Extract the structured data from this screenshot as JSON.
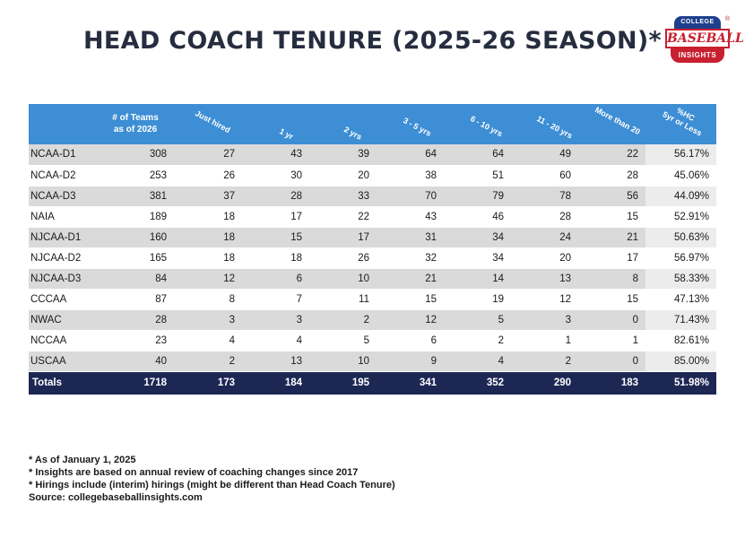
{
  "title": "HEAD COACH TENURE (2025-26 SEASON)*",
  "logo": {
    "top": "COLLEGE",
    "middle": "BASEBALL",
    "bottom": "INSIGHTS",
    "reg": "®"
  },
  "colors": {
    "header": "#3d8ed4",
    "totals": "#1d2754",
    "stripe": "#dadada",
    "title": "#262d3f"
  },
  "chart_data": {
    "type": "table",
    "title": "HEAD COACH TENURE (2025-26 SEASON)*",
    "columns": [
      "# of Teams as of 2026",
      "Just hired",
      "1 yr",
      "2 yrs",
      "3 - 5 yrs",
      "6 - 10 yrs",
      "11 - 20 yrs",
      "More than 20",
      "%HC 5yr or Less"
    ],
    "rows": [
      {
        "label": "NCAA-D1",
        "values": [
          "308",
          "27",
          "43",
          "39",
          "64",
          "64",
          "49",
          "22",
          "56.17%"
        ]
      },
      {
        "label": "NCAA-D2",
        "values": [
          "253",
          "26",
          "30",
          "20",
          "38",
          "51",
          "60",
          "28",
          "45.06%"
        ]
      },
      {
        "label": "NCAA-D3",
        "values": [
          "381",
          "37",
          "28",
          "33",
          "70",
          "79",
          "78",
          "56",
          "44.09%"
        ]
      },
      {
        "label": "NAIA",
        "values": [
          "189",
          "18",
          "17",
          "22",
          "43",
          "46",
          "28",
          "15",
          "52.91%"
        ]
      },
      {
        "label": "NJCAA-D1",
        "values": [
          "160",
          "18",
          "15",
          "17",
          "31",
          "34",
          "24",
          "21",
          "50.63%"
        ]
      },
      {
        "label": "NJCAA-D2",
        "values": [
          "165",
          "18",
          "18",
          "26",
          "32",
          "34",
          "20",
          "17",
          "56.97%"
        ]
      },
      {
        "label": "NJCAA-D3",
        "values": [
          "84",
          "12",
          "6",
          "10",
          "21",
          "14",
          "13",
          "8",
          "58.33%"
        ]
      },
      {
        "label": "CCCAA",
        "values": [
          "87",
          "8",
          "7",
          "11",
          "15",
          "19",
          "12",
          "15",
          "47.13%"
        ]
      },
      {
        "label": "NWAC",
        "values": [
          "28",
          "3",
          "3",
          "2",
          "12",
          "5",
          "3",
          "0",
          "71.43%"
        ]
      },
      {
        "label": "NCCAA",
        "values": [
          "23",
          "4",
          "4",
          "5",
          "6",
          "2",
          "1",
          "1",
          "82.61%"
        ]
      },
      {
        "label": "USCAA",
        "values": [
          "40",
          "2",
          "13",
          "10",
          "9",
          "4",
          "2",
          "0",
          "85.00%"
        ]
      }
    ],
    "totals": {
      "label": "Totals",
      "values": [
        "1718",
        "173",
        "184",
        "195",
        "341",
        "352",
        "290",
        "183",
        "51.98%"
      ]
    }
  },
  "header": {
    "teams_line1": "# of Teams",
    "teams_line2": "as of 2026",
    "just_hired": "Just hired",
    "y1": "1 yr",
    "y2": "2 yrs",
    "y3_5": "3 - 5 yrs",
    "y6_10": "6 - 10 yrs",
    "y11_20": "11 - 20 yrs",
    "more20": "More than 20",
    "pct_line1": "%HC",
    "pct_line2": "5yr or Less"
  },
  "notes": [
    "*  As of January 1, 2025",
    "*  Insights are based on annual review of coaching changes since 2017",
    "*  Hirings include (interim) hirings (might be different than Head Coach Tenure)",
    "Source: collegebaseballinsights.com"
  ]
}
